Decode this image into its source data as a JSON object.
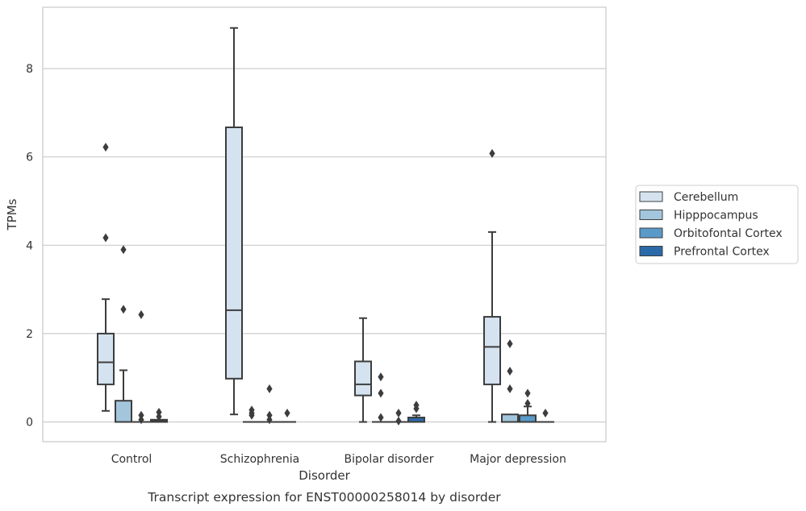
{
  "chart_data": {
    "type": "box",
    "xlabel": "Disorder",
    "ylabel": "TPMs",
    "caption": "Transcript expression for ENST00000258014 by disorder",
    "ylim": [
      -0.43,
      9.4
    ],
    "yticks": [
      0,
      2,
      4,
      6,
      8
    ],
    "grid": "horizontal",
    "legend_position": "right",
    "categories": [
      "Control",
      "Schizophrenia",
      "Bipolar disorder",
      "Major depression"
    ],
    "series": [
      {
        "name": "Cerebellum",
        "color": "#d5e3f0",
        "boxes": [
          {
            "whisker_low": 0.25,
            "q1": 0.85,
            "median": 1.35,
            "q3": 2.0,
            "whisker_high": 2.78,
            "outliers": [
              6.22,
              4.17
            ]
          },
          {
            "whisker_low": 0.17,
            "q1": 0.98,
            "median": 2.53,
            "q3": 6.67,
            "whisker_high": 8.92,
            "outliers": []
          },
          {
            "whisker_low": 0.0,
            "q1": 0.6,
            "median": 0.85,
            "q3": 1.37,
            "whisker_high": 2.35,
            "outliers": []
          },
          {
            "whisker_low": 0.0,
            "q1": 0.85,
            "median": 1.7,
            "q3": 2.38,
            "whisker_high": 4.3,
            "outliers": [
              6.08
            ]
          }
        ]
      },
      {
        "name": "Hipppocampus",
        "color": "#a3c6dd",
        "boxes": [
          {
            "whisker_low": 0.0,
            "q1": 0.0,
            "median": 0.0,
            "q3": 0.48,
            "whisker_high": 1.17,
            "outliers": [
              3.9,
              2.55
            ]
          },
          {
            "whisker_low": 0.0,
            "q1": 0.0,
            "median": 0.0,
            "q3": 0.0,
            "whisker_high": 0.0,
            "outliers": [
              0.27,
              0.2,
              0.15
            ]
          },
          {
            "whisker_low": 0.0,
            "q1": 0.0,
            "median": 0.0,
            "q3": 0.0,
            "whisker_high": 0.0,
            "outliers": [
              1.02,
              0.65,
              0.1
            ]
          },
          {
            "whisker_low": 0.0,
            "q1": 0.0,
            "median": 0.0,
            "q3": 0.17,
            "whisker_high": 0.17,
            "outliers": [
              1.77,
              1.15,
              0.75
            ]
          }
        ]
      },
      {
        "name": "Orbitofontal Cortex",
        "color": "#5a9ac9",
        "boxes": [
          {
            "whisker_low": 0.0,
            "q1": 0.0,
            "median": 0.0,
            "q3": 0.0,
            "whisker_high": 0.0,
            "outliers": [
              2.43,
              0.15,
              0.05
            ]
          },
          {
            "whisker_low": 0.0,
            "q1": 0.0,
            "median": 0.0,
            "q3": 0.0,
            "whisker_high": 0.0,
            "outliers": [
              0.75,
              0.15,
              0.05
            ]
          },
          {
            "whisker_low": 0.0,
            "q1": 0.0,
            "median": 0.0,
            "q3": 0.0,
            "whisker_high": 0.0,
            "outliers": [
              0.2,
              0.02
            ]
          },
          {
            "whisker_low": 0.0,
            "q1": 0.0,
            "median": 0.0,
            "q3": 0.15,
            "whisker_high": 0.35,
            "outliers": [
              0.65,
              0.42
            ]
          }
        ]
      },
      {
        "name": "Prefrontal Cortex",
        "color": "#2b6aa8",
        "boxes": [
          {
            "whisker_low": 0.0,
            "q1": 0.0,
            "median": 0.03,
            "q3": 0.05,
            "whisker_high": 0.05,
            "outliers": [
              0.22,
              0.12
            ]
          },
          {
            "whisker_low": 0.0,
            "q1": 0.0,
            "median": 0.0,
            "q3": 0.0,
            "whisker_high": 0.0,
            "outliers": [
              0.2
            ]
          },
          {
            "whisker_low": 0.0,
            "q1": 0.0,
            "median": 0.0,
            "q3": 0.1,
            "whisker_high": 0.15,
            "outliers": [
              0.38,
              0.3
            ]
          },
          {
            "whisker_low": 0.0,
            "q1": 0.0,
            "median": 0.0,
            "q3": 0.0,
            "whisker_high": 0.0,
            "outliers": [
              0.2
            ]
          }
        ]
      }
    ]
  }
}
